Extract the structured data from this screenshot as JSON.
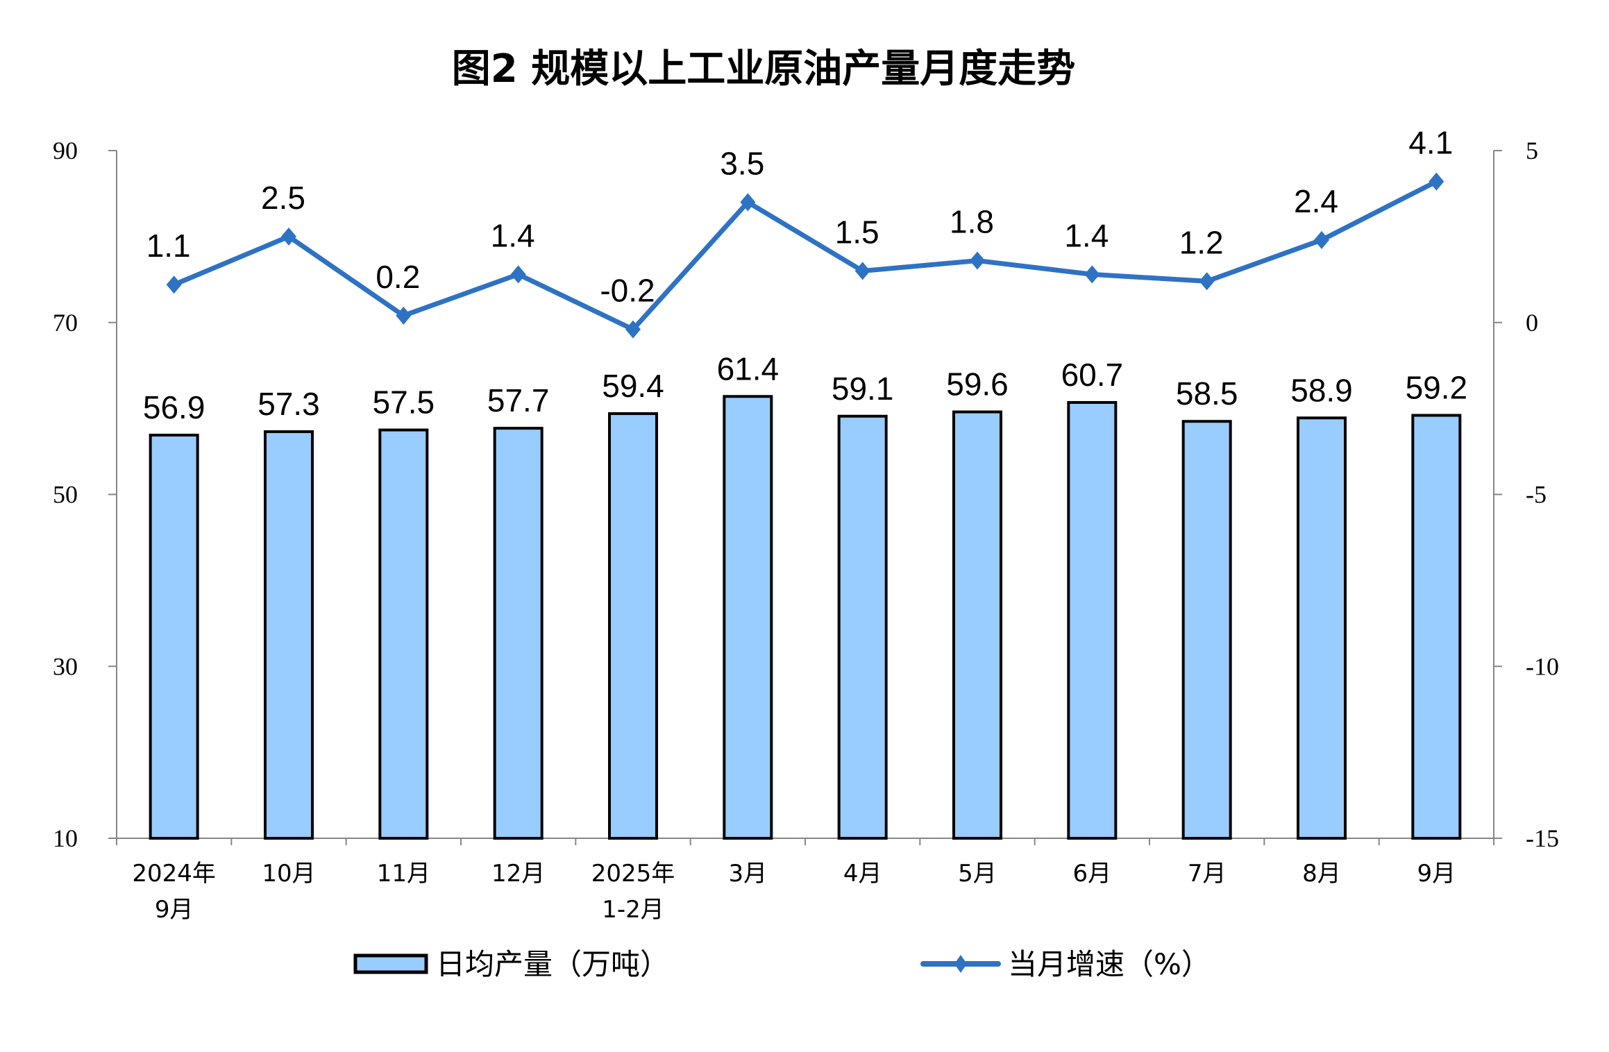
{
  "chart_data": {
    "type": "bar+line",
    "title": "图2  规模以上工业原油产量月度走势",
    "categories": [
      [
        "2024年",
        "9月"
      ],
      [
        "10月"
      ],
      [
        "11月"
      ],
      [
        "12月"
      ],
      [
        "2025年",
        "1-2月"
      ],
      [
        "3月"
      ],
      [
        "4月"
      ],
      [
        "5月"
      ],
      [
        "6月"
      ],
      [
        "7月"
      ],
      [
        "8月"
      ],
      [
        "9月"
      ]
    ],
    "series": [
      {
        "name": "日均产量（万吨）",
        "type": "bar",
        "axis": "left",
        "color": "#99CCFF",
        "values": [
          56.9,
          57.3,
          57.5,
          57.7,
          59.4,
          61.4,
          59.1,
          59.6,
          60.7,
          58.5,
          58.9,
          59.2
        ],
        "labels": [
          "56.9",
          "57.3",
          "57.5",
          "57.7",
          "59.4",
          "61.4",
          "59.1",
          "59.6",
          "60.7",
          "58.5",
          "58.9",
          "59.2"
        ]
      },
      {
        "name": "当月增速（%）",
        "type": "line",
        "axis": "right",
        "color": "#2E72C4",
        "values": [
          1.1,
          2.5,
          0.2,
          1.4,
          -0.2,
          3.5,
          1.5,
          1.8,
          1.4,
          1.2,
          2.4,
          4.1
        ],
        "labels": [
          "1.1",
          "2.5",
          "0.2",
          "1.4",
          "-0.2",
          "3.5",
          "1.5",
          "1.8",
          "1.4",
          "1.2",
          "2.4",
          "4.1"
        ]
      }
    ],
    "left_axis": {
      "ylim": [
        10,
        90
      ],
      "ticks": [
        "10",
        "30",
        "50",
        "70",
        "90"
      ]
    },
    "right_axis": {
      "ylim": [
        -15,
        5
      ],
      "ticks": [
        "-15",
        "-10",
        "-5",
        "0",
        "5"
      ]
    },
    "grid": false,
    "legend_position": "bottom"
  }
}
